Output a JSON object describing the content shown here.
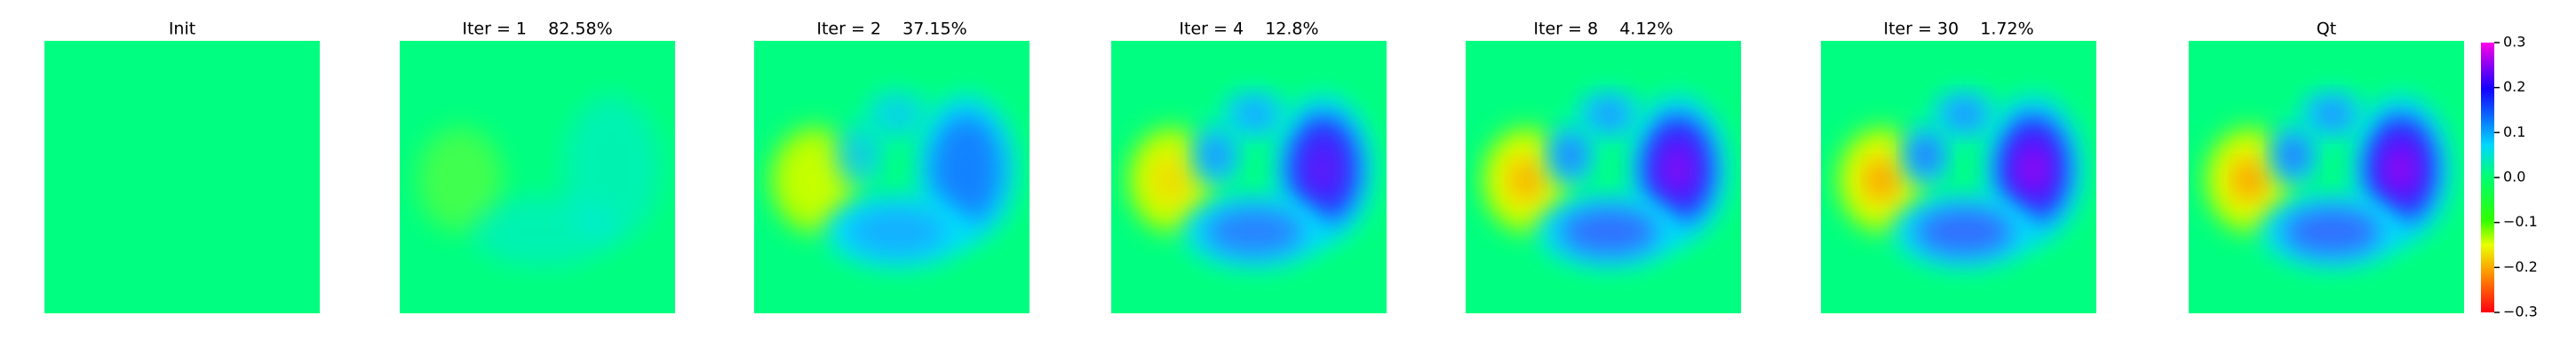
{
  "chart_data": {
    "type": "heatmap",
    "panels": [
      {
        "title": "Init"
      },
      {
        "title": "Iter = 1    82.58%"
      },
      {
        "title": "Iter = 2    37.15%"
      },
      {
        "title": "Iter = 4    12.8%"
      },
      {
        "title": "Iter = 8    4.12%"
      },
      {
        "title": "Iter = 30    1.72%"
      },
      {
        "title": "Qt"
      }
    ],
    "colorbar": {
      "lim": [
        -0.3,
        0.3
      ],
      "ticks": [
        {
          "value": -0.3,
          "label": "−0.3"
        },
        {
          "value": -0.2,
          "label": "−0.2"
        },
        {
          "value": -0.1,
          "label": "−0.1"
        },
        {
          "value": 0,
          "label": "0.0"
        },
        0.1,
        0.2,
        0.3
      ]
    }
  }
}
